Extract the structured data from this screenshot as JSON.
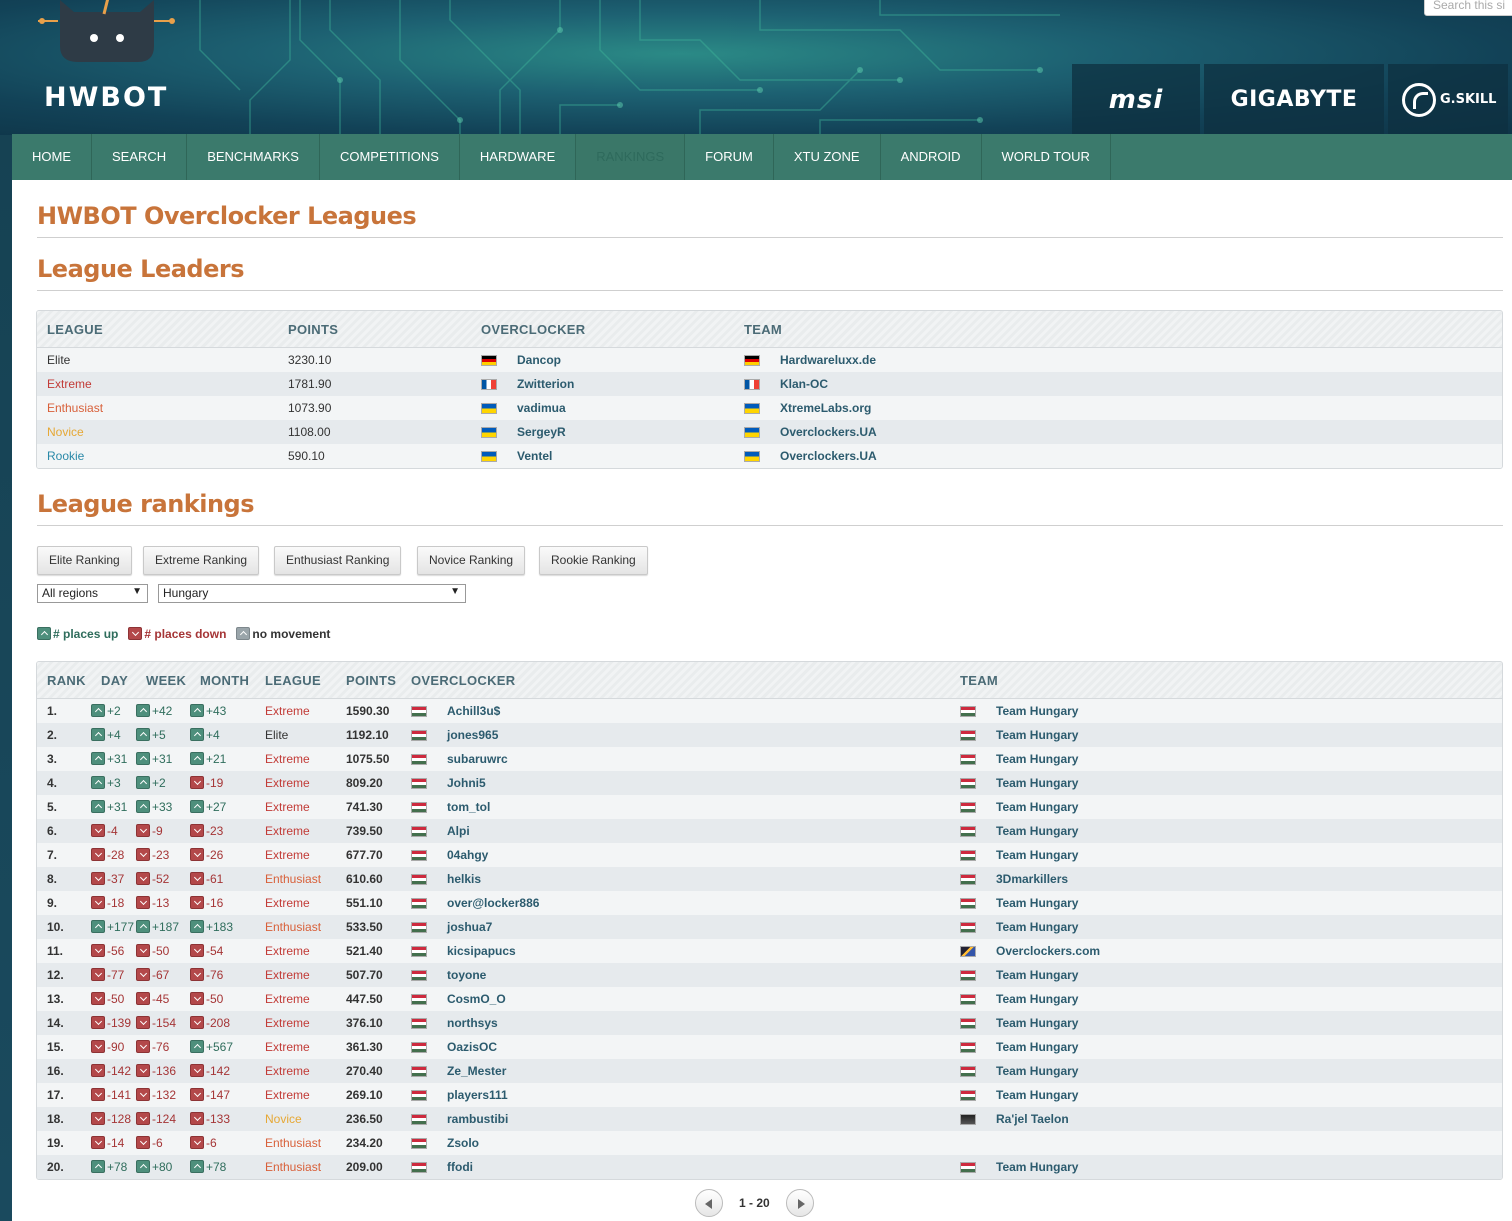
{
  "header": {
    "logo_text": "HWBOT",
    "search_placeholder": "Search this si",
    "sponsors": [
      {
        "name": "msi",
        "label": "msi"
      },
      {
        "name": "gigabyte",
        "label": "GIGABYTE"
      },
      {
        "name": "gskill",
        "label": "G.SKILL"
      }
    ]
  },
  "nav": {
    "items": [
      {
        "label": "HOME",
        "active": false
      },
      {
        "label": "SEARCH",
        "active": false
      },
      {
        "label": "BENCHMARKS",
        "active": false
      },
      {
        "label": "COMPETITIONS",
        "active": false
      },
      {
        "label": "HARDWARE",
        "active": false
      },
      {
        "label": "RANKINGS",
        "active": true
      },
      {
        "label": "FORUM",
        "active": false
      },
      {
        "label": "XTU ZONE",
        "active": false
      },
      {
        "label": "ANDROID",
        "active": false
      },
      {
        "label": "WORLD TOUR",
        "active": false
      }
    ]
  },
  "page_title": "HWBOT Overclocker Leagues",
  "leaders": {
    "title": "League Leaders",
    "headers": {
      "league": "LEAGUE",
      "points": "POINTS",
      "overclocker": "OVERCLOCKER",
      "team": "TEAM"
    },
    "rows": [
      {
        "league": "Elite",
        "league_class": "elite",
        "points": "3230.10",
        "flag": "de",
        "overclocker": "Dancop",
        "team_flag": "de",
        "team": "Hardwareluxx.de"
      },
      {
        "league": "Extreme",
        "league_class": "extreme",
        "points": "1781.90",
        "flag": "fr",
        "overclocker": "Zwitterion",
        "team_flag": "fr",
        "team": "Klan-OC"
      },
      {
        "league": "Enthusiast",
        "league_class": "enthusiast",
        "points": "1073.90",
        "flag": "ua",
        "overclocker": "vadimua",
        "team_flag": "ua",
        "team": "XtremeLabs.org"
      },
      {
        "league": "Novice",
        "league_class": "novice",
        "points": "1108.00",
        "flag": "ua",
        "overclocker": "SergeyR",
        "team_flag": "ua",
        "team": "Overclockers.UA"
      },
      {
        "league": "Rookie",
        "league_class": "rookie",
        "points": "590.10",
        "flag": "ua",
        "overclocker": "Ventel",
        "team_flag": "ua",
        "team": "Overclockers.UA"
      }
    ]
  },
  "rankings": {
    "title": "League rankings",
    "buttons": [
      "Elite Ranking",
      "Extreme Ranking",
      "Enthusiast Ranking",
      "Novice Ranking",
      "Rookie Ranking"
    ],
    "region_select": "All regions",
    "country_select": "Hungary",
    "legend": {
      "up": "# places up",
      "down": "# places down",
      "none": "no movement"
    },
    "headers": {
      "rank": "RANK",
      "day": "DAY",
      "week": "WEEK",
      "month": "MONTH",
      "league": "LEAGUE",
      "points": "POINTS",
      "overclocker": "OVERCLOCKER",
      "team": "TEAM"
    },
    "rows": [
      {
        "rank": "1.",
        "day": "+2",
        "week": "+42",
        "month": "+43",
        "league": "Extreme",
        "points": "1590.30",
        "overclocker": "Achill3u$",
        "team_flag": "hu",
        "team": "Team Hungary"
      },
      {
        "rank": "2.",
        "day": "+4",
        "week": "+5",
        "month": "+4",
        "league": "Elite",
        "points": "1192.10",
        "overclocker": "jones965",
        "team_flag": "hu",
        "team": "Team Hungary"
      },
      {
        "rank": "3.",
        "day": "+31",
        "week": "+31",
        "month": "+21",
        "league": "Extreme",
        "points": "1075.50",
        "overclocker": "subaruwrc",
        "team_flag": "hu",
        "team": "Team Hungary"
      },
      {
        "rank": "4.",
        "day": "+3",
        "week": "+2",
        "month": "-19",
        "league": "Extreme",
        "points": "809.20",
        "overclocker": "Johni5",
        "team_flag": "hu",
        "team": "Team Hungary"
      },
      {
        "rank": "5.",
        "day": "+31",
        "week": "+33",
        "month": "+27",
        "league": "Extreme",
        "points": "741.30",
        "overclocker": "tom_tol",
        "team_flag": "hu",
        "team": "Team Hungary"
      },
      {
        "rank": "6.",
        "day": "-4",
        "week": "-9",
        "month": "-23",
        "league": "Extreme",
        "points": "739.50",
        "overclocker": "Alpi",
        "team_flag": "hu",
        "team": "Team Hungary"
      },
      {
        "rank": "7.",
        "day": "-28",
        "week": "-23",
        "month": "-26",
        "league": "Extreme",
        "points": "677.70",
        "overclocker": "04ahgy",
        "team_flag": "hu",
        "team": "Team Hungary"
      },
      {
        "rank": "8.",
        "day": "-37",
        "week": "-52",
        "month": "-61",
        "league": "Enthusiast",
        "points": "610.60",
        "overclocker": "helkis",
        "team_flag": "hu",
        "team": "3Dmarkillers"
      },
      {
        "rank": "9.",
        "day": "-18",
        "week": "-13",
        "month": "-16",
        "league": "Extreme",
        "points": "551.10",
        "overclocker": "over@locker886",
        "team_flag": "hu",
        "team": "Team Hungary"
      },
      {
        "rank": "10.",
        "day": "+177",
        "week": "+187",
        "month": "+183",
        "league": "Enthusiast",
        "points": "533.50",
        "overclocker": "joshua7",
        "team_flag": "hu",
        "team": "Team Hungary"
      },
      {
        "rank": "11.",
        "day": "-56",
        "week": "-50",
        "month": "-54",
        "league": "Extreme",
        "points": "521.40",
        "overclocker": "kicsipapucs",
        "team_flag": "team-oc",
        "team": "Overclockers.com"
      },
      {
        "rank": "12.",
        "day": "-77",
        "week": "-67",
        "month": "-76",
        "league": "Extreme",
        "points": "507.70",
        "overclocker": "toyone",
        "team_flag": "hu",
        "team": "Team Hungary"
      },
      {
        "rank": "13.",
        "day": "-50",
        "week": "-45",
        "month": "-50",
        "league": "Extreme",
        "points": "447.50",
        "overclocker": "CosmO_O",
        "team_flag": "hu",
        "team": "Team Hungary"
      },
      {
        "rank": "14.",
        "day": "-139",
        "week": "-154",
        "month": "-208",
        "league": "Extreme",
        "points": "376.10",
        "overclocker": "northsys",
        "team_flag": "hu",
        "team": "Team Hungary"
      },
      {
        "rank": "15.",
        "day": "-90",
        "week": "-76",
        "month": "+567",
        "league": "Extreme",
        "points": "361.30",
        "overclocker": "OazisOC",
        "team_flag": "hu",
        "team": "Team Hungary"
      },
      {
        "rank": "16.",
        "day": "-142",
        "week": "-136",
        "month": "-142",
        "league": "Extreme",
        "points": "270.40",
        "overclocker": "Ze_Mester",
        "team_flag": "hu",
        "team": "Team Hungary"
      },
      {
        "rank": "17.",
        "day": "-141",
        "week": "-132",
        "month": "-147",
        "league": "Extreme",
        "points": "269.10",
        "overclocker": "players111",
        "team_flag": "hu",
        "team": "Team Hungary"
      },
      {
        "rank": "18.",
        "day": "-128",
        "week": "-124",
        "month": "-133",
        "league": "Novice",
        "points": "236.50",
        "overclocker": "rambustibi",
        "team_flag": "team-rt",
        "team": "Ra'jel Taelon"
      },
      {
        "rank": "19.",
        "day": "-14",
        "week": "-6",
        "month": "-6",
        "league": "Enthusiast",
        "points": "234.20",
        "overclocker": "Zsolo",
        "team_flag": "",
        "team": ""
      },
      {
        "rank": "20.",
        "day": "+78",
        "week": "+80",
        "month": "+78",
        "league": "Enthusiast",
        "points": "209.00",
        "overclocker": "ffodi",
        "team_flag": "hu",
        "team": "Team Hungary"
      }
    ],
    "pager_label": "1 - 20"
  }
}
